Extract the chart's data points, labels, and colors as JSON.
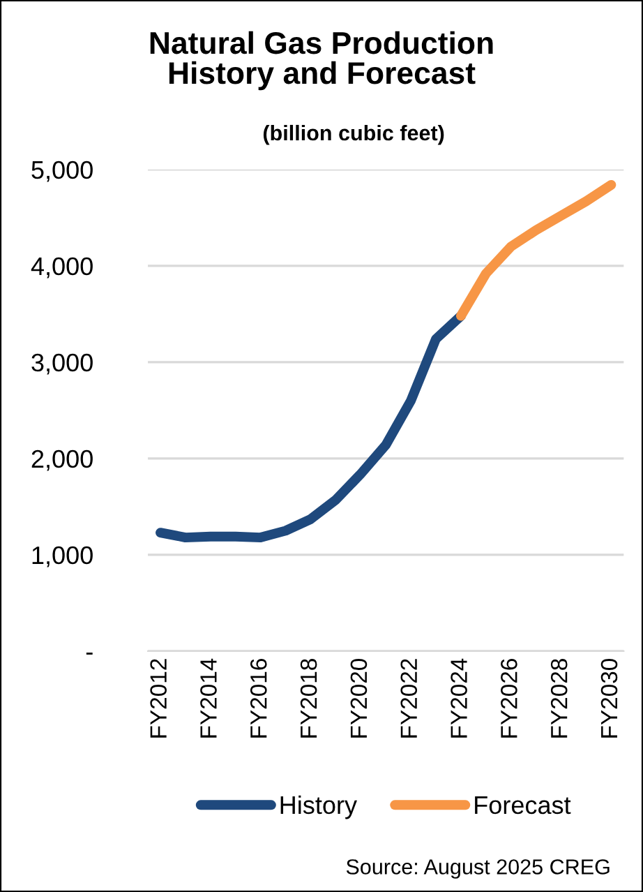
{
  "chart_data": {
    "type": "line",
    "title": "Natural Gas Production\nHistory and Forecast",
    "subtitle": "(billion cubic feet)",
    "categories": [
      "FY2012",
      null,
      "FY2014",
      null,
      "FY2016",
      null,
      "FY2018",
      null,
      "FY2020",
      null,
      "FY2022",
      null,
      "FY2024",
      null,
      "FY2026",
      null,
      "FY2028",
      null,
      "FY2030"
    ],
    "series": [
      {
        "name": "History",
        "color": "#1f497d",
        "values": [
          1230,
          1180,
          1190,
          1190,
          1180,
          1250,
          1370,
          1570,
          1840,
          2140,
          2600,
          3240,
          3480,
          null,
          null,
          null,
          null,
          null,
          null
        ]
      },
      {
        "name": "Forecast",
        "color": "#f79646",
        "values": [
          null,
          null,
          null,
          null,
          null,
          null,
          null,
          null,
          null,
          null,
          null,
          null,
          3480,
          3920,
          4200,
          4370,
          4520,
          4670,
          4840
        ]
      }
    ],
    "ylim": [
      0,
      5000
    ],
    "yticks": [
      {
        "value": 0,
        "label": "-"
      },
      {
        "value": 1000,
        "label": "1,000"
      },
      {
        "value": 2000,
        "label": "2,000"
      },
      {
        "value": 3000,
        "label": "3,000"
      },
      {
        "value": 4000,
        "label": "4,000"
      },
      {
        "value": 5000,
        "label": "5,000"
      }
    ],
    "grid": "y",
    "legend": "bottom",
    "marker": "none",
    "line_style": "solid",
    "annotations": [
      "Source: August 2025 CREG"
    ]
  }
}
